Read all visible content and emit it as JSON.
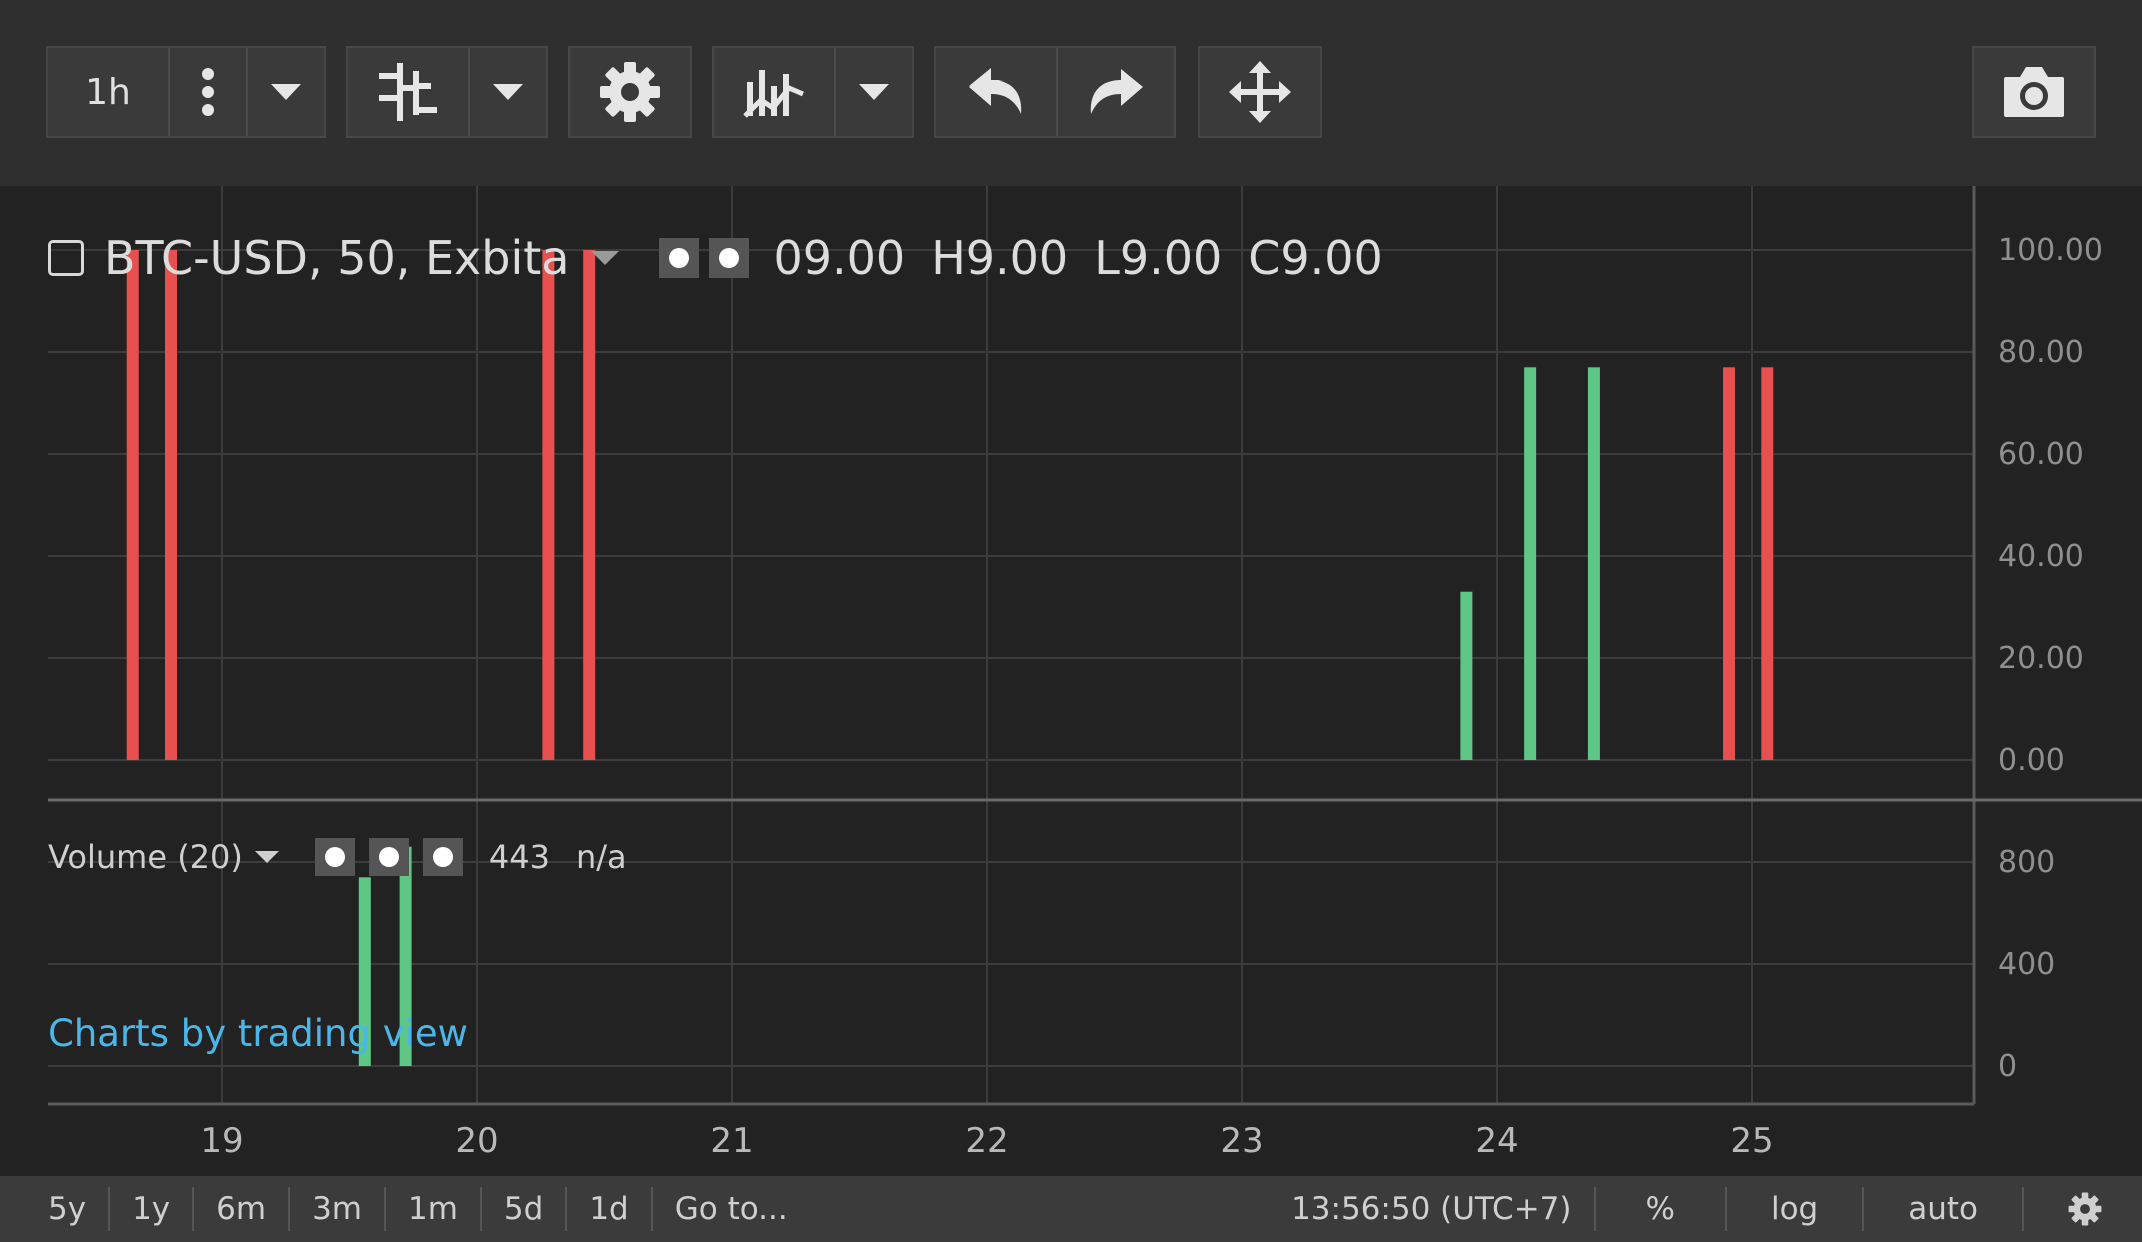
{
  "toolbar": {
    "interval": "1h",
    "icons": [
      "more-vertical-icon",
      "chevron-down-icon",
      "bar-style-icon",
      "chevron-down-icon",
      "gear-icon",
      "indicators-icon",
      "chevron-down-icon",
      "undo-icon",
      "redo-icon",
      "move-icon",
      "camera-icon"
    ]
  },
  "legend": {
    "symbol": "BTC-USD, 50, Exbita",
    "open": "09.00",
    "high": "H9.00",
    "low": "L9.00",
    "close": "C9.00"
  },
  "volume_legend": {
    "title": "Volume (20)",
    "value": "443",
    "ma": "n/a"
  },
  "watermark": "Charts by trading view",
  "bottom_bar": {
    "ranges": [
      "5y",
      "1y",
      "6m",
      "3m",
      "1m",
      "5d",
      "1d"
    ],
    "goto": "Go to...",
    "time": "13:56:50 (UTC+7)",
    "percent": "%",
    "log": "log",
    "auto": "auto"
  },
  "colors": {
    "up": "#5ec786",
    "down": "#e85050",
    "link": "#4ab7e8"
  },
  "chart_data": [
    {
      "type": "bar",
      "title": "BTC-USD, 50, Exbita",
      "x_tick_labels": [
        "19",
        "20",
        "21",
        "22",
        "23",
        "24",
        "25"
      ],
      "y_tick_labels": [
        "100.00",
        "80.00",
        "60.00",
        "40.00",
        "20.00",
        "0.00"
      ],
      "ylim": [
        0,
        100
      ],
      "grid": true,
      "series": [
        {
          "bars": [
            {
              "x": 18.65,
              "value": 100,
              "dir": "down"
            },
            {
              "x": 18.8,
              "value": 100,
              "dir": "down"
            },
            {
              "x": 20.28,
              "value": 100,
              "dir": "down"
            },
            {
              "x": 20.44,
              "value": 100,
              "dir": "down"
            },
            {
              "x": 23.88,
              "value": 33,
              "dir": "up"
            },
            {
              "x": 24.13,
              "value": 77,
              "dir": "up"
            },
            {
              "x": 24.38,
              "value": 77,
              "dir": "up"
            },
            {
              "x": 24.91,
              "value": 77,
              "dir": "down"
            },
            {
              "x": 25.06,
              "value": 77,
              "dir": "down"
            }
          ]
        }
      ]
    },
    {
      "type": "bar",
      "title": "Volume (20)",
      "y_tick_labels": [
        "800",
        "400",
        "0"
      ],
      "ylim": [
        0,
        800
      ],
      "grid": true,
      "series": [
        {
          "bars": [
            {
              "x": 19.56,
              "value": 740,
              "dir": "up"
            },
            {
              "x": 19.72,
              "value": 860,
              "dir": "up"
            }
          ]
        }
      ]
    }
  ]
}
